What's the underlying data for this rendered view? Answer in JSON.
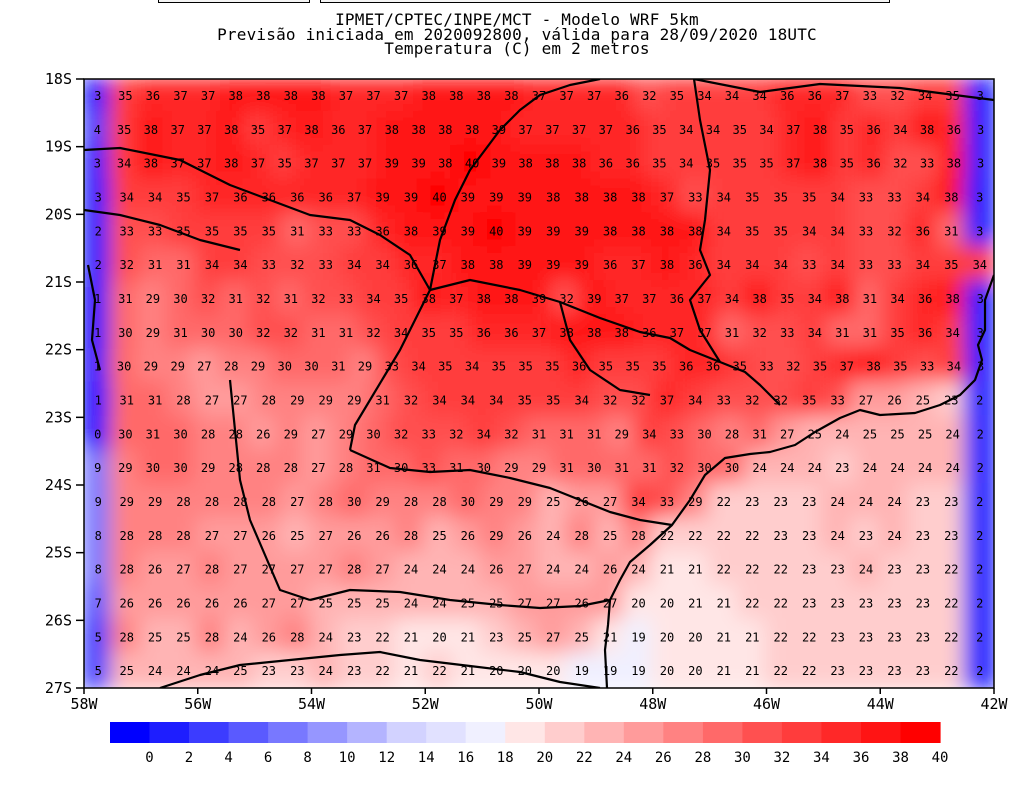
{
  "title": {
    "line1": "IPMET/CPTEC/INPE/MCT - Modelo WRF 5km",
    "line2": "Previsão iniciada em 2020092800, válida para 28/09/2020 18UTC",
    "line3": "Temperatura (C) em 2 metros"
  },
  "chart_data": {
    "type": "heatmap",
    "title": "Temperatura (C) em 2 metros",
    "x_ticks": [
      "58W",
      "56W",
      "54W",
      "52W",
      "50W",
      "48W",
      "46W",
      "44W",
      "42W"
    ],
    "y_ticks": [
      "18S",
      "19S",
      "20S",
      "21S",
      "22S",
      "23S",
      "24S",
      "25S",
      "26S",
      "27S"
    ],
    "xlim": [
      -58,
      -42
    ],
    "ylim": [
      -27,
      -18
    ],
    "grid": false,
    "colorbar": {
      "placement": "bottom",
      "labels": [
        "0",
        "2",
        "4",
        "6",
        "8",
        "10",
        "12",
        "14",
        "16",
        "18",
        "20",
        "22",
        "24",
        "26",
        "28",
        "30",
        "32",
        "34",
        "36",
        "38",
        "40"
      ],
      "colors": [
        "#0000ff",
        "#1e1eff",
        "#3c3cff",
        "#5a5aff",
        "#7878ff",
        "#9696ff",
        "#b4b4ff",
        "#d2d2ff",
        "#e1e1ff",
        "#f0f0ff",
        "#ffe6e6",
        "#ffcdcd",
        "#ffb4b4",
        "#ff9b9b",
        "#ff8282",
        "#ff6969",
        "#ff5050",
        "#ff3c3c",
        "#ff2828",
        "#ff1414",
        "#ff0000"
      ]
    },
    "rows": [
      "3 35 36 37 37 38 38 38 38 37 37 37 38 38 38 38 37 37 37 36 32 35 34 34 34 36 36 37 33 32 34 35 3",
      "4 35 38 37 37 38 35 37 38 36 37 38 38 38 38 39 37 37 37 37 36 35 34 34 35 34 37 38 35 36 34 38 36 3",
      "3 34 38 37 37 38 37 35 37 37 37 39 39 38 40 39 38 38 38 36 36 35 34 35 35 35 37 38 35 36 32 33 38 3",
      "3 34 34 35 37 36 36 36 36 37 39 39 40 39 39 39 38 38 38 38 37 33 34 35 35 35 34 33 33 34 38 3",
      "2 33 33 35 35 35 35 31 33 33 36 38 39 39 40 39 39 39 38 38 38 38 34 35 35 34 34 33 32 36 31 3",
      "2 32 31 31 34 34 33 32 33 34 34 36 37 38 38 39 39 39 36 37 38 36 34 34 34 33 34 33 33 34 35 34",
      "1 31 29 30 32 31 32 31 32 33 34 35 38 37 38 38 39 32 39 37 37 36 37 34 38 35 34 38 31 34 36 38 3",
      "1 30 29 31 30 30 32 32 31 31 32 34 35 35 36 36 37 38 38 38 36 37 37 31 32 33 34 31 31 35 36 34 3",
      "1 30 29 29 27 28 29 30 30 31 29 33 34 35 34 35 35 35 36 35 35 35 36 36 35 33 32 35 37 38 35 33 34 3",
      "1 31 31 28 27 27 28 29 29 29 31 32 34 34 34 35 35 34 32 32 37 34 33 32 32 35 33 27 26 25 23 2",
      "0 30 31 30 28 28 26 29 27 29 30 32 33 32 34 32 31 31 31 29 34 33 30 28 31 27 25 24 25 25 25 24 2",
      "9 29 30 30 29 28 28 28 27 28 31 30 33 31 30 29 29 31 30 31 31 32 30 30 24 24 24 23 24 24 24 24 2",
      "9 29 29 28 28 28 28 27 28 30 29 28 28 30 29 29 25 26 27 34 33 29 22 23 23 23 24 24 24 23 23 2",
      "8 28 28 28 27 27 26 25 27 26 26 28 25 26 29 26 24 28 25 28 22 22 22 22 23 23 24 23 24 23 23 2",
      "8 28 26 27 28 27 27 27 27 28 27 24 24 24 26 27 24 24 26 24 21 21 22 22 22 23 23 24 23 23 22 2",
      "7 26 26 26 26 26 27 27 25 25 25 24 24 25 25 27 27 26 27 20 20 21 21 22 22 23 23 23 23 23 22 2",
      "5 28 25 25 28 24 26 28 24 23 22 21 20 21 23 25 27 25 21 19 20 20 21 21 22 22 23 23 23 23 22 2",
      "5 25 24 24 24 25 23 23 24 23 22 21 22 21 20 20 20 19 19 19 20 20 21 21 22 22 23 23 23 23 22 2"
    ]
  }
}
